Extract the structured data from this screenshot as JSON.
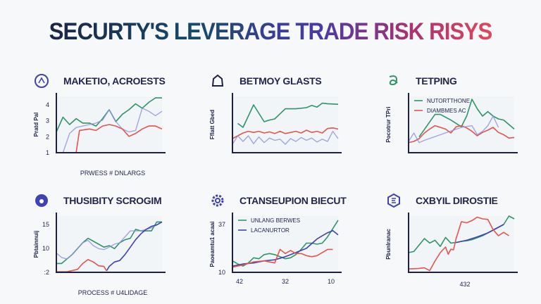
{
  "title": "SECURTY'S LEVERAGE TRADE RISK RISYS",
  "colors": {
    "green": "#2f9468",
    "red": "#e25550",
    "blue": "#8d90d8",
    "navy": "#3f43b0",
    "axis": "#1e2140"
  },
  "chart_data": [
    {
      "type": "line",
      "title": "MAKETIO, ACROESTS",
      "icon": "network-circle-icon",
      "ylabel": "Pratd Pal",
      "xlabel": "PRWESS # DNLARGS",
      "yticks": [
        "1",
        "2",
        "3",
        "4"
      ],
      "ylim": [
        1,
        4.8
      ],
      "xlim": [
        0,
        16
      ],
      "legend": [],
      "series": [
        {
          "color": "green",
          "x": [
            0,
            1,
            2,
            3,
            4,
            5,
            6,
            7,
            8,
            9,
            10,
            11,
            12,
            13,
            14,
            15,
            16
          ],
          "values": [
            2.4,
            3.4,
            2.9,
            3.3,
            3.0,
            3.0,
            2.8,
            3.3,
            3.9,
            3.1,
            3.6,
            3.9,
            4.3,
            4.0,
            4.4,
            4.7,
            4.7
          ]
        },
        {
          "color": "blue",
          "x": [
            1,
            2,
            3,
            4,
            5,
            6,
            7,
            8,
            9,
            10,
            11,
            12,
            13,
            14,
            15,
            16
          ],
          "values": [
            1,
            2.3,
            2.7,
            2.8,
            2.9,
            3.0,
            3.2,
            3.9,
            3.1,
            2.6,
            2.4,
            2.5,
            4.0,
            3.8,
            3.5,
            3.8
          ]
        },
        {
          "color": "red",
          "x": [
            3,
            3.5,
            5,
            6,
            7,
            8,
            9,
            10,
            11,
            12,
            13,
            14,
            15,
            16
          ],
          "values": [
            1,
            2.5,
            2.6,
            2.5,
            2.8,
            2.9,
            2.8,
            2.6,
            2.1,
            2.3,
            2.6,
            2.8,
            2.8,
            2.6
          ]
        }
      ]
    },
    {
      "type": "line",
      "title": "BETMOY GLASTS",
      "icon": "bell-icon",
      "ylabel": "Fflatt Gbed",
      "xlabel": "",
      "yticks": [],
      "ylim": [
        0,
        10
      ],
      "xlim": [
        0,
        20
      ],
      "legend": [],
      "series": [
        {
          "color": "green",
          "x": [
            1,
            2,
            4,
            6,
            7,
            8,
            10,
            12,
            14,
            15,
            16,
            17,
            18,
            20
          ],
          "values": [
            5.2,
            4.5,
            8.5,
            5.5,
            5.8,
            6.0,
            7.8,
            7.8,
            8.0,
            8.4,
            8.1,
            8.8,
            8.7,
            8.6
          ]
        },
        {
          "color": "red",
          "x": [
            0,
            1,
            2,
            3,
            4,
            5,
            6,
            7,
            8,
            9,
            10,
            11,
            12,
            13,
            14,
            15,
            16,
            17,
            18,
            19,
            20
          ],
          "values": [
            2.5,
            3.0,
            3.5,
            3.8,
            3.6,
            3.8,
            3.5,
            3.7,
            3.4,
            3.8,
            3.4,
            3.6,
            3.8,
            3.5,
            4.0,
            3.6,
            3.8,
            3.5,
            4.3,
            4.4,
            4.2
          ]
        },
        {
          "color": "blue",
          "x": [
            0,
            1,
            2,
            3,
            4,
            5,
            6,
            7,
            8,
            9,
            10,
            11,
            12,
            13,
            14,
            15,
            16,
            17,
            18,
            19,
            20
          ],
          "values": [
            1.5,
            3.0,
            2.0,
            3.0,
            1.6,
            2.8,
            1.8,
            2.6,
            2.2,
            2.4,
            1.5,
            2.5,
            2.0,
            2.7,
            2.2,
            2.6,
            1.9,
            2.4,
            2.0,
            3.8,
            2.5
          ]
        }
      ]
    },
    {
      "type": "line",
      "title": "TETPING",
      "icon": "swirl-icon",
      "ylabel": "Pocotrur TPri",
      "xlabel": "",
      "yticks": [],
      "ylim": [
        0,
        10
      ],
      "xlim": [
        0,
        20
      ],
      "legend": [
        "NUTORTTHONE",
        "DIAMBMES AC"
      ],
      "series": [
        {
          "color": "green",
          "x": [
            2,
            5,
            6,
            8,
            10,
            10.5,
            11,
            12,
            13,
            14,
            15,
            16,
            17,
            18,
            19,
            20
          ],
          "values": [
            2.8,
            6.8,
            6.8,
            5.8,
            4.6,
            5.6,
            6.5,
            9.5,
            7.8,
            6.5,
            7.3,
            6.5,
            6.0,
            5.8,
            5.0,
            4.2
          ]
        },
        {
          "color": "red",
          "x": [
            0,
            1,
            2,
            3,
            4,
            5,
            6,
            7,
            8,
            9,
            10,
            11,
            12,
            13,
            14,
            15,
            16,
            17,
            18,
            19,
            20
          ],
          "values": [
            1.8,
            2.0,
            2.5,
            3.5,
            4.2,
            4.8,
            4.5,
            4.2,
            3.5,
            4.6,
            4.8,
            4.4,
            3.8,
            3.0,
            3.6,
            4.0,
            4.5,
            3.6,
            3.2,
            2.6,
            2.7
          ]
        },
        {
          "color": "blue",
          "x": [
            0,
            1,
            2,
            3,
            10,
            12,
            13,
            14,
            15,
            16,
            17
          ],
          "values": [
            2.0,
            3.5,
            1.8,
            2.2,
            4.5,
            4.8,
            3.2,
            3.8,
            4.8,
            6.5,
            4.5
          ]
        }
      ]
    },
    {
      "type": "line",
      "title": "THUSIBITY SCROGIM",
      "icon": "clock-icon",
      "ylabel": "Pbtainnuij",
      "xlabel": "PROCESS # U4LIDAGE",
      "yticks": [
        ":2",
        "10",
        "15"
      ],
      "ylim": [
        0,
        19
      ],
      "xlim": [
        0,
        20
      ],
      "legend": [],
      "series": [
        {
          "color": "green",
          "x": [
            0,
            1,
            3,
            5,
            6,
            8,
            9,
            10,
            11,
            12,
            13,
            14,
            15,
            16,
            18,
            19,
            20
          ],
          "values": [
            3,
            3,
            6,
            10,
            11.5,
            9.5,
            8.5,
            9,
            8,
            10,
            11,
            11.5,
            14.5,
            14,
            14,
            17,
            17
          ]
        },
        {
          "color": "blue",
          "x": [
            0,
            1,
            2,
            3,
            5,
            6,
            7,
            8,
            9,
            10,
            11,
            12,
            14,
            16,
            18,
            19,
            20
          ],
          "values": [
            6.5,
            5,
            4.5,
            6,
            10,
            10.8,
            9,
            8,
            7.7,
            8.5,
            9.5,
            10,
            14,
            14,
            15,
            16,
            17
          ]
        },
        {
          "color": "navy",
          "x": [
            9.5,
            10,
            11,
            12,
            13,
            14,
            15,
            16,
            17,
            18,
            19,
            20
          ],
          "values": [
            0.5,
            2,
            3.5,
            4,
            6,
            8.5,
            11,
            13,
            14.5,
            15.5,
            16,
            17
          ]
        },
        {
          "color": "red",
          "x": [
            0,
            2,
            4,
            5,
            6,
            7,
            8,
            9,
            9.5
          ],
          "values": [
            0.2,
            0.2,
            1,
            3,
            4.3,
            3.5,
            2.2,
            2,
            0.5
          ]
        }
      ]
    },
    {
      "type": "line",
      "title": "CTANSEUPION BIECUT",
      "icon": "gear-icon",
      "ylabel": "Paoeamtu1 acaai",
      "xlabel": "",
      "yticks": [
        "10",
        "37"
      ],
      "xticks": [
        "42",
        "32",
        "10"
      ],
      "ylim": [
        10,
        37
      ],
      "xlim": [
        0,
        20
      ],
      "legend": [
        "UNLANG BERWES",
        "LACANURTOR"
      ],
      "series": [
        {
          "color": "green",
          "x": [
            0,
            1,
            2,
            3,
            4,
            5,
            6,
            7,
            8,
            9,
            10,
            11,
            12,
            13,
            14,
            15,
            16,
            17,
            18,
            19,
            20
          ],
          "values": [
            15.5,
            14,
            13,
            14.5,
            17,
            16.5,
            18.5,
            19,
            18.5,
            17.5,
            16.5,
            17,
            18.5,
            21,
            24,
            24,
            23.5,
            24,
            27,
            31,
            35
          ]
        },
        {
          "color": "navy",
          "x": [
            0,
            2,
            4,
            6,
            8,
            10,
            12,
            14,
            16,
            17,
            18,
            19,
            20
          ],
          "values": [
            13,
            14,
            14.5,
            15.5,
            16,
            17.5,
            19.5,
            21.5,
            26,
            27.5,
            29,
            30,
            28
          ]
        },
        {
          "color": "red",
          "x": [
            0,
            2,
            4,
            6,
            8,
            9,
            10,
            11,
            12,
            13,
            14,
            15,
            16,
            17,
            18,
            19
          ],
          "values": [
            12.5,
            13.5,
            15,
            15.5,
            14.5,
            21,
            19,
            20.5,
            19,
            19,
            18,
            17.5,
            18,
            19.5,
            21,
            21
          ]
        }
      ]
    },
    {
      "type": "line",
      "title": "CXBYIL DIROSTIE",
      "icon": "hexagon-icon",
      "ylabel": "Pbunlranac",
      "xlabel": "432",
      "yticks": [],
      "ylim": [
        0,
        10
      ],
      "xlim": [
        0,
        20
      ],
      "legend": [],
      "series": [
        {
          "color": "green",
          "x": [
            0,
            1,
            3,
            4,
            5,
            6,
            7,
            8,
            9,
            10,
            11,
            12,
            14,
            16,
            18,
            19,
            20
          ],
          "values": [
            3.5,
            3.7,
            6.0,
            5.2,
            5.7,
            4.6,
            6.2,
            5.2,
            5.3,
            5.5,
            5.6,
            5.8,
            6.5,
            7.5,
            8.5,
            10,
            9.5
          ]
        },
        {
          "color": "navy",
          "x": [
            9,
            11,
            13,
            15,
            16,
            17,
            18
          ],
          "values": [
            5.3,
            5.7,
            6.3,
            7.0,
            7.5,
            8.0,
            8.5
          ]
        },
        {
          "color": "red",
          "x": [
            0,
            2,
            3,
            4,
            5,
            6,
            7,
            7.5,
            8,
            8.5,
            9,
            10,
            11,
            12,
            13,
            14,
            15,
            16,
            17,
            18,
            19
          ],
          "values": [
            0.6,
            0.7,
            0.8,
            0.3,
            2,
            3.5,
            4.5,
            3.2,
            4.1,
            4.0,
            6.0,
            9.0,
            8.8,
            9.2,
            9.8,
            9.5,
            9.4,
            7.6,
            6.5,
            7.1,
            6.5
          ]
        }
      ]
    }
  ]
}
